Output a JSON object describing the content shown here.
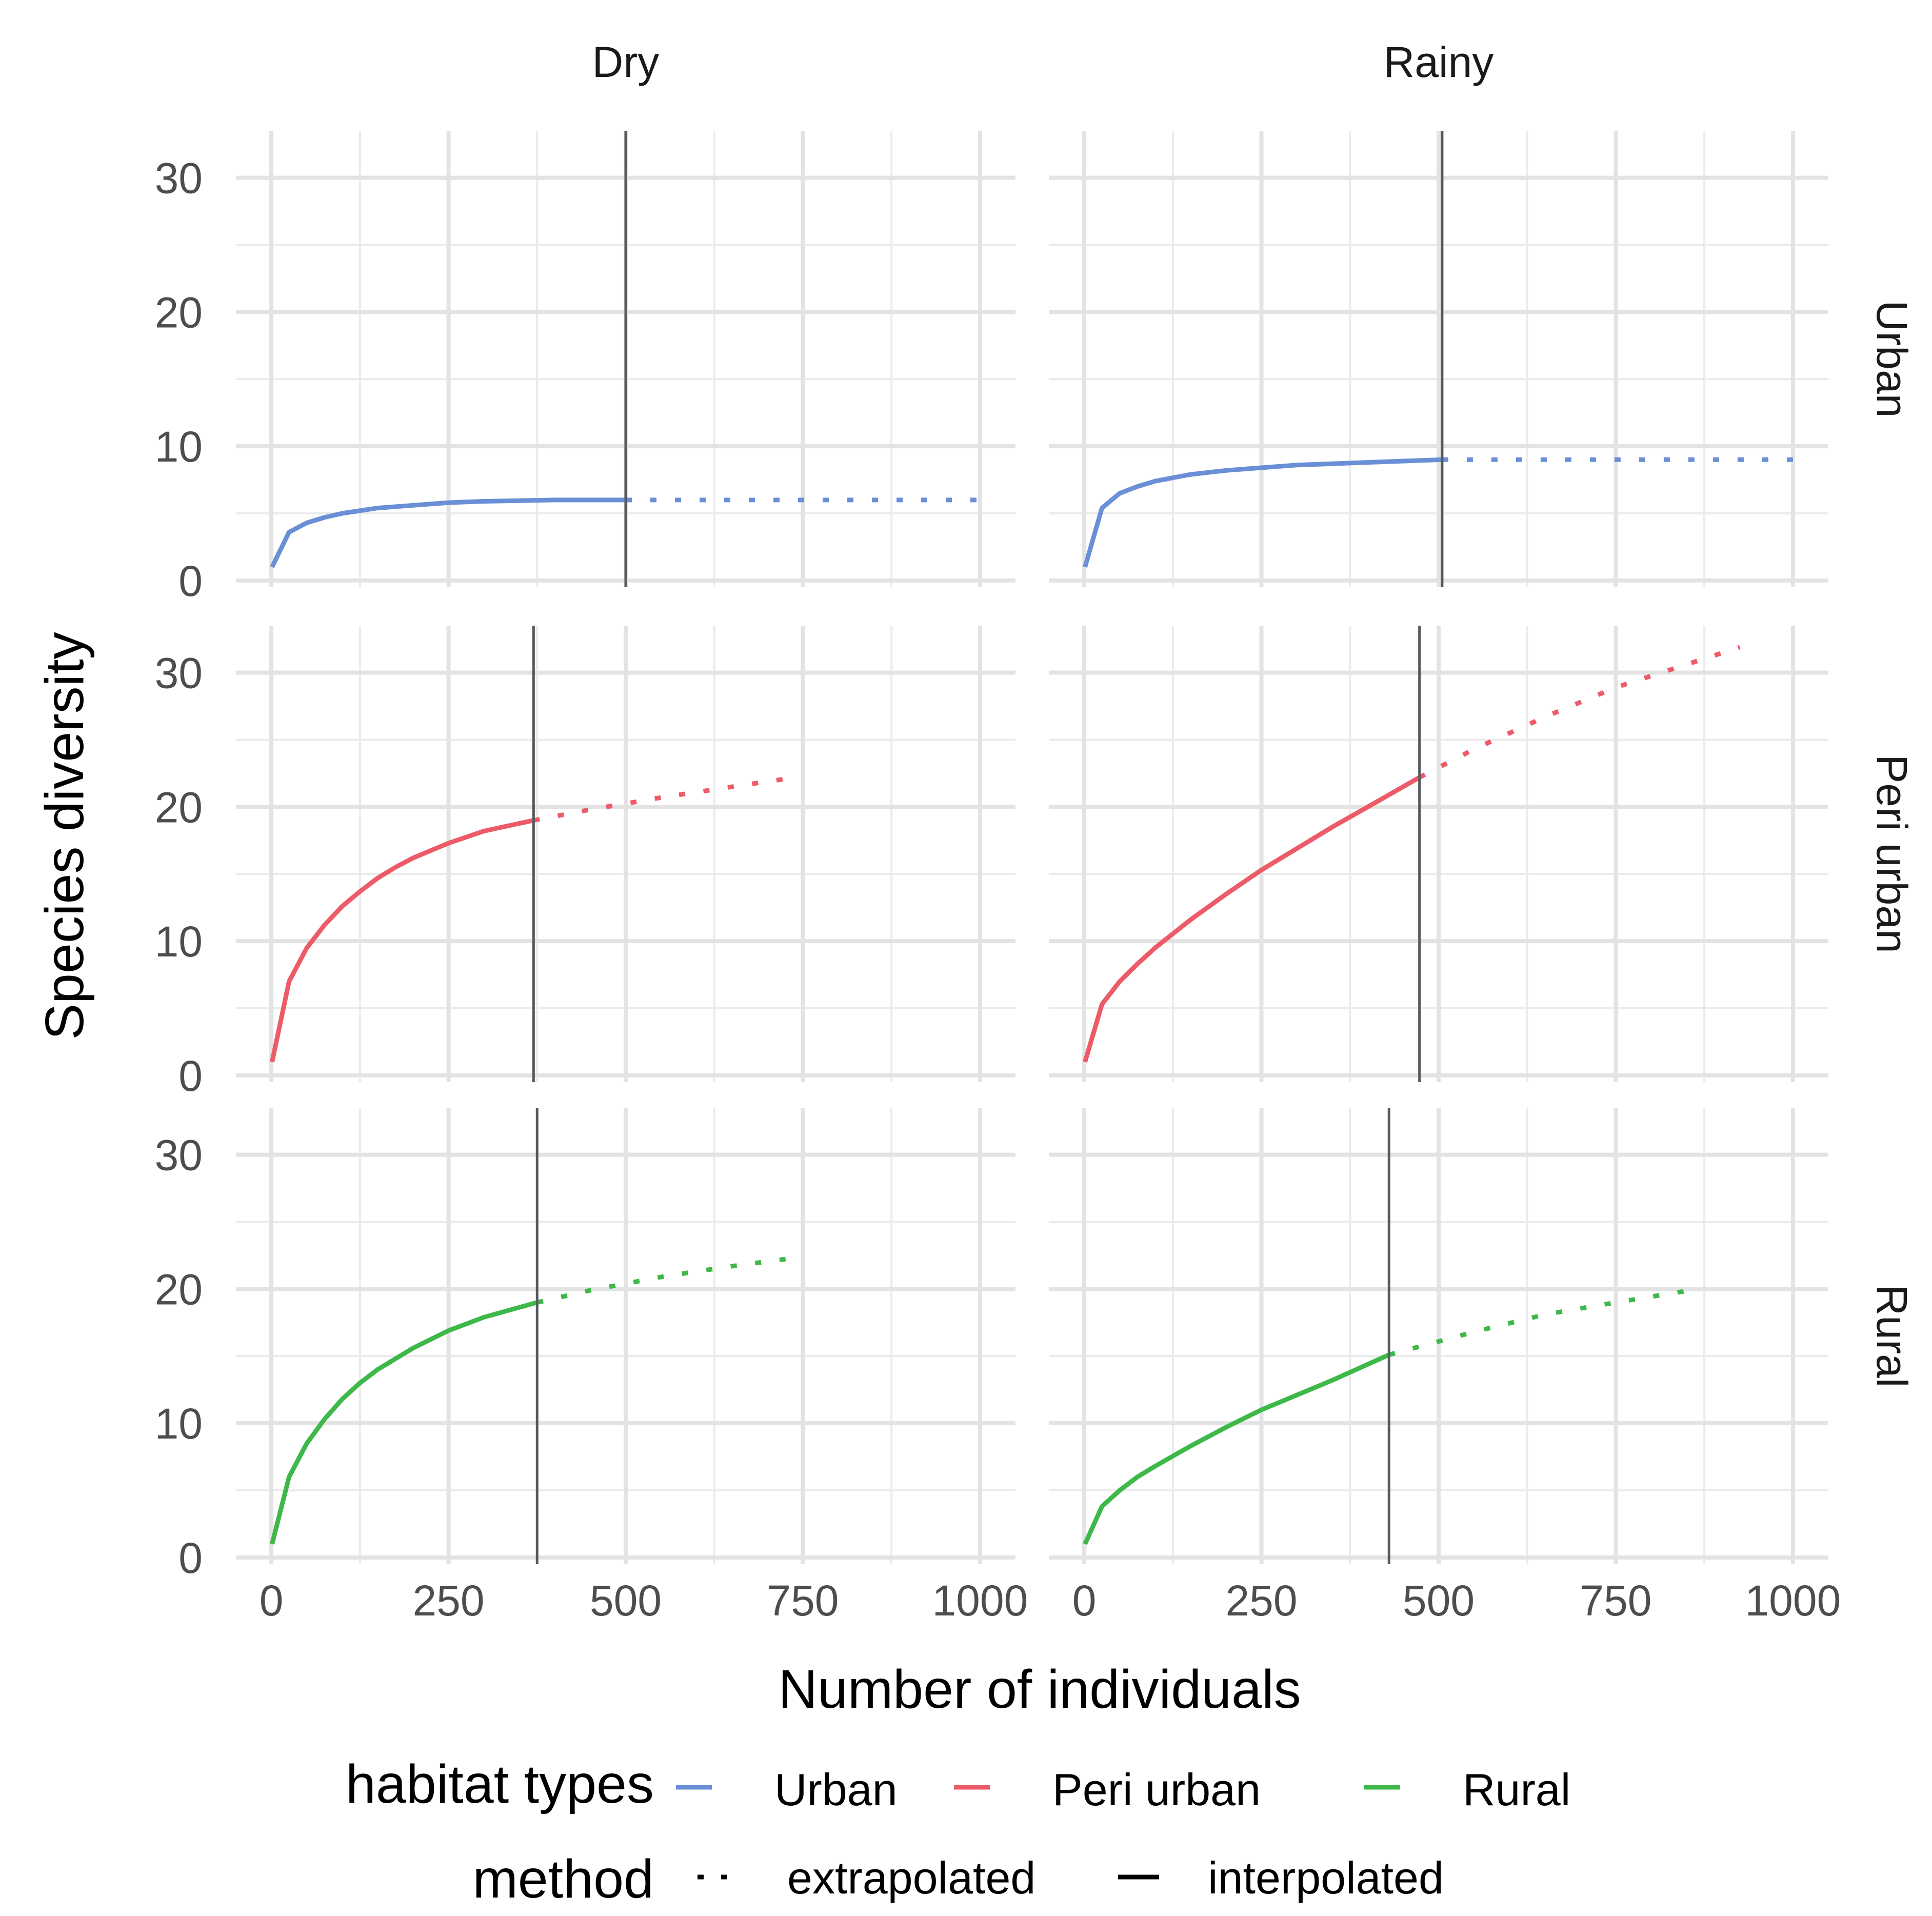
{
  "chart_data": {
    "type": "line",
    "title": "",
    "xlabel": "Number of individuals",
    "ylabel": "Species diversity",
    "xlim": [
      -50,
      1050
    ],
    "ylim": [
      -0.5,
      33.5
    ],
    "xticks": [
      "0",
      "250",
      "500",
      "750",
      "1000"
    ],
    "yticks": [
      "0",
      "10",
      "20",
      "30"
    ],
    "facet_columns": [
      "Dry",
      "Rainy"
    ],
    "facet_rows": [
      "Urban",
      "Peri urban",
      "Rural"
    ],
    "legend": {
      "placement": "bottom",
      "habitat_title": "habitat types",
      "habitat_entries": [
        {
          "label": "Urban",
          "color": "#6a8fd6"
        },
        {
          "label": "Peri urban",
          "color": "#ec5b67"
        },
        {
          "label": "Rural",
          "color": "#3fb84a"
        }
      ],
      "method_title": "method",
      "method_entries": [
        {
          "label": "extrapolated",
          "style": "dotted"
        },
        {
          "label": "interpolated",
          "style": "solid"
        }
      ]
    },
    "panels": [
      {
        "season": "Dry",
        "habitat": "Urban",
        "color": "#6a8fd6",
        "reference_sample_size": 500,
        "interpolated": [
          [
            1,
            1
          ],
          [
            25,
            3.6
          ],
          [
            50,
            4.3
          ],
          [
            75,
            4.7
          ],
          [
            100,
            5.0
          ],
          [
            150,
            5.4
          ],
          [
            200,
            5.6
          ],
          [
            250,
            5.8
          ],
          [
            300,
            5.9
          ],
          [
            400,
            6.0
          ],
          [
            500,
            6.0
          ]
        ],
        "extrapolated": [
          [
            500,
            6.0
          ],
          [
            600,
            6.0
          ],
          [
            700,
            6.0
          ],
          [
            800,
            6.0
          ],
          [
            1000,
            6.0
          ]
        ]
      },
      {
        "season": "Rainy",
        "habitat": "Urban",
        "color": "#6a8fd6",
        "reference_sample_size": 505,
        "interpolated": [
          [
            1,
            1
          ],
          [
            25,
            5.4
          ],
          [
            50,
            6.5
          ],
          [
            75,
            7.0
          ],
          [
            100,
            7.4
          ],
          [
            150,
            7.9
          ],
          [
            200,
            8.2
          ],
          [
            250,
            8.4
          ],
          [
            300,
            8.6
          ],
          [
            400,
            8.8
          ],
          [
            505,
            9.0
          ]
        ],
        "extrapolated": [
          [
            505,
            9.0
          ],
          [
            600,
            9.0
          ],
          [
            700,
            9.0
          ],
          [
            800,
            9.0
          ],
          [
            1000,
            9.0
          ]
        ]
      },
      {
        "season": "Dry",
        "habitat": "Peri urban",
        "color": "#ec5b67",
        "reference_sample_size": 370,
        "interpolated": [
          [
            1,
            1
          ],
          [
            25,
            7.0
          ],
          [
            50,
            9.5
          ],
          [
            75,
            11.2
          ],
          [
            100,
            12.6
          ],
          [
            125,
            13.7
          ],
          [
            150,
            14.7
          ],
          [
            175,
            15.5
          ],
          [
            200,
            16.2
          ],
          [
            250,
            17.3
          ],
          [
            300,
            18.2
          ],
          [
            370,
            19.0
          ]
        ],
        "extrapolated": [
          [
            370,
            19.0
          ],
          [
            450,
            19.8
          ],
          [
            550,
            20.7
          ],
          [
            650,
            21.5
          ],
          [
            740,
            22.2
          ]
        ]
      },
      {
        "season": "Rainy",
        "habitat": "Peri urban",
        "color": "#ec5b67",
        "reference_sample_size": 473,
        "interpolated": [
          [
            1,
            1
          ],
          [
            25,
            5.3
          ],
          [
            50,
            7.0
          ],
          [
            75,
            8.3
          ],
          [
            100,
            9.5
          ],
          [
            150,
            11.6
          ],
          [
            200,
            13.5
          ],
          [
            250,
            15.3
          ],
          [
            300,
            16.9
          ],
          [
            350,
            18.5
          ],
          [
            400,
            20.0
          ],
          [
            473,
            22.2
          ]
        ],
        "extrapolated": [
          [
            473,
            22.2
          ],
          [
            550,
            24.3
          ],
          [
            650,
            26.7
          ],
          [
            750,
            28.9
          ],
          [
            925,
            31.9
          ]
        ]
      },
      {
        "season": "Dry",
        "habitat": "Rural",
        "color": "#3fb84a",
        "reference_sample_size": 375,
        "interpolated": [
          [
            1,
            1
          ],
          [
            25,
            6.0
          ],
          [
            50,
            8.5
          ],
          [
            75,
            10.3
          ],
          [
            100,
            11.8
          ],
          [
            125,
            13.0
          ],
          [
            150,
            14.0
          ],
          [
            200,
            15.6
          ],
          [
            250,
            16.9
          ],
          [
            300,
            17.9
          ],
          [
            375,
            19.0
          ]
        ],
        "extrapolated": [
          [
            375,
            19.0
          ],
          [
            450,
            19.9
          ],
          [
            550,
            20.9
          ],
          [
            650,
            21.7
          ],
          [
            750,
            22.4
          ]
        ]
      },
      {
        "season": "Rainy",
        "habitat": "Rural",
        "color": "#3fb84a",
        "reference_sample_size": 430,
        "interpolated": [
          [
            1,
            1
          ],
          [
            25,
            3.8
          ],
          [
            50,
            5.0
          ],
          [
            75,
            6.0
          ],
          [
            100,
            6.8
          ],
          [
            150,
            8.3
          ],
          [
            200,
            9.7
          ],
          [
            250,
            11.0
          ],
          [
            300,
            12.1
          ],
          [
            350,
            13.2
          ],
          [
            430,
            15.1
          ]
        ],
        "extrapolated": [
          [
            430,
            15.1
          ],
          [
            550,
            16.8
          ],
          [
            650,
            18.1
          ],
          [
            750,
            19.0
          ],
          [
            855,
            19.9
          ]
        ]
      }
    ]
  }
}
